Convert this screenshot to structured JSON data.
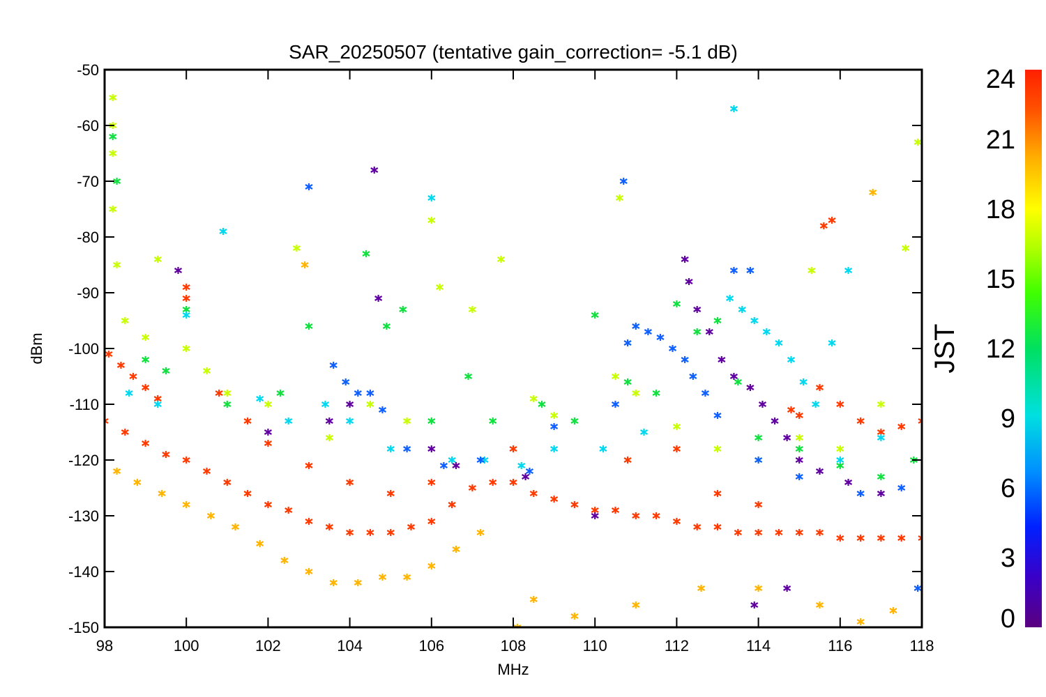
{
  "chart_data": {
    "type": "scatter",
    "title": "SAR_20250507 (tentative gain_correction= -5.1 dB)",
    "xlabel": "MHz",
    "ylabel": "dBm",
    "xlim": [
      98,
      118
    ],
    "ylim": [
      -150,
      -50
    ],
    "x_ticks": [
      "98",
      "100",
      "102",
      "104",
      "106",
      "108",
      "110",
      "112",
      "114",
      "116",
      "118"
    ],
    "y_ticks": [
      "-50",
      "-60",
      "-70",
      "-80",
      "-90",
      "-100",
      "-110",
      "-120",
      "-130",
      "-140",
      "-150"
    ],
    "grid": false,
    "colorbar": {
      "label": "JST",
      "range": [
        0,
        24
      ],
      "ticks": [
        "0",
        "3",
        "6",
        "9",
        "12",
        "15",
        "18",
        "21",
        "24"
      ],
      "colormap": "rainbow",
      "colors": [
        "#5a0080",
        "#3a00c8",
        "#0020ff",
        "#0090ff",
        "#00e0e0",
        "#00e060",
        "#40ff00",
        "#b0ff00",
        "#ffff00",
        "#ffb000",
        "#ff5000",
        "#ff2000"
      ]
    },
    "series": [
      {
        "jst": 22,
        "color": "#ff3a00",
        "points": [
          [
            98.0,
            -113
          ],
          [
            98.5,
            -115
          ],
          [
            99.0,
            -117
          ],
          [
            99.5,
            -119
          ],
          [
            100.0,
            -120
          ],
          [
            100.5,
            -122
          ],
          [
            101.0,
            -124
          ],
          [
            101.5,
            -126
          ],
          [
            102.0,
            -128
          ],
          [
            102.5,
            -129
          ],
          [
            103.0,
            -131
          ],
          [
            103.5,
            -132
          ],
          [
            104.0,
            -133
          ],
          [
            104.5,
            -133
          ],
          [
            105.0,
            -133
          ],
          [
            105.5,
            -132
          ],
          [
            106.0,
            -131
          ],
          [
            106.5,
            -128
          ],
          [
            107.0,
            -125
          ],
          [
            107.5,
            -124
          ],
          [
            108.0,
            -124
          ],
          [
            108.5,
            -126
          ],
          [
            109.0,
            -127
          ],
          [
            109.5,
            -128
          ],
          [
            110.0,
            -129
          ],
          [
            110.5,
            -129
          ],
          [
            111.0,
            -130
          ],
          [
            111.5,
            -130
          ],
          [
            112.0,
            -131
          ],
          [
            112.5,
            -132
          ],
          [
            113.0,
            -132
          ],
          [
            113.5,
            -133
          ],
          [
            114.0,
            -133
          ],
          [
            114.5,
            -133
          ],
          [
            115.0,
            -133
          ],
          [
            115.5,
            -133
          ],
          [
            116.0,
            -134
          ],
          [
            116.5,
            -134
          ],
          [
            117.0,
            -134
          ],
          [
            117.5,
            -134
          ],
          [
            118.0,
            -134
          ],
          [
            98.1,
            -101
          ],
          [
            98.4,
            -103
          ],
          [
            98.7,
            -105
          ],
          [
            99.0,
            -107
          ],
          [
            99.3,
            -109
          ],
          [
            100.0,
            -89
          ],
          [
            100.0,
            -91
          ],
          [
            100.8,
            -108
          ],
          [
            101.5,
            -113
          ],
          [
            102.0,
            -117
          ],
          [
            103.0,
            -121
          ],
          [
            104.0,
            -124
          ],
          [
            105.0,
            -126
          ],
          [
            106.0,
            -124
          ],
          [
            108.0,
            -118
          ],
          [
            110.8,
            -120
          ],
          [
            112.0,
            -118
          ],
          [
            113.0,
            -126
          ],
          [
            114.0,
            -128
          ],
          [
            114.8,
            -111
          ],
          [
            115.0,
            -112
          ],
          [
            115.5,
            -107
          ],
          [
            116.0,
            -110
          ],
          [
            116.5,
            -113
          ],
          [
            117.0,
            -115
          ],
          [
            117.5,
            -114
          ],
          [
            118.0,
            -113
          ],
          [
            115.8,
            -77
          ],
          [
            115.6,
            -78
          ]
        ]
      },
      {
        "jst": 20,
        "color": "#ffb400",
        "points": [
          [
            98.3,
            -122
          ],
          [
            98.8,
            -124
          ],
          [
            99.4,
            -126
          ],
          [
            100.0,
            -128
          ],
          [
            100.6,
            -130
          ],
          [
            101.2,
            -132
          ],
          [
            101.8,
            -135
          ],
          [
            102.4,
            -138
          ],
          [
            103.0,
            -140
          ],
          [
            103.6,
            -142
          ],
          [
            104.2,
            -142
          ],
          [
            104.8,
            -141
          ],
          [
            105.4,
            -141
          ],
          [
            106.0,
            -139
          ],
          [
            106.6,
            -136
          ],
          [
            107.2,
            -133
          ],
          [
            108.5,
            -145
          ],
          [
            109.5,
            -148
          ],
          [
            111.0,
            -146
          ],
          [
            112.6,
            -143
          ],
          [
            114.0,
            -143
          ],
          [
            115.5,
            -146
          ],
          [
            116.5,
            -149
          ],
          [
            117.3,
            -147
          ],
          [
            116.8,
            -72
          ],
          [
            102.9,
            -85
          ],
          [
            108.1,
            -150
          ]
        ]
      },
      {
        "jst": 18,
        "color": "#c8ff00",
        "points": [
          [
            98.2,
            -55
          ],
          [
            98.2,
            -60
          ],
          [
            98.2,
            -65
          ],
          [
            98.2,
            -75
          ],
          [
            98.3,
            -85
          ],
          [
            98.5,
            -95
          ],
          [
            99.0,
            -98
          ],
          [
            99.3,
            -84
          ],
          [
            100.0,
            -100
          ],
          [
            100.5,
            -104
          ],
          [
            101.0,
            -108
          ],
          [
            102.0,
            -110
          ],
          [
            102.7,
            -82
          ],
          [
            103.5,
            -116
          ],
          [
            104.5,
            -110
          ],
          [
            105.4,
            -113
          ],
          [
            106.0,
            -77
          ],
          [
            106.2,
            -89
          ],
          [
            107.0,
            -93
          ],
          [
            107.7,
            -84
          ],
          [
            108.5,
            -109
          ],
          [
            109.0,
            -112
          ],
          [
            110.5,
            -105
          ],
          [
            110.6,
            -73
          ],
          [
            111.0,
            -108
          ],
          [
            112.0,
            -114
          ],
          [
            113.0,
            -118
          ],
          [
            114.0,
            -120
          ],
          [
            115.0,
            -116
          ],
          [
            116.0,
            -118
          ],
          [
            117.0,
            -110
          ],
          [
            117.9,
            -63
          ],
          [
            117.6,
            -82
          ],
          [
            115.3,
            -86
          ]
        ]
      },
      {
        "jst": 14,
        "color": "#10e040",
        "points": [
          [
            98.2,
            -62
          ],
          [
            98.3,
            -70
          ],
          [
            99.0,
            -102
          ],
          [
            99.5,
            -104
          ],
          [
            100.0,
            -93
          ],
          [
            101.0,
            -110
          ],
          [
            102.3,
            -108
          ],
          [
            103.0,
            -96
          ],
          [
            104.4,
            -83
          ],
          [
            104.9,
            -96
          ],
          [
            105.3,
            -93
          ],
          [
            106.0,
            -113
          ],
          [
            106.9,
            -105
          ],
          [
            107.5,
            -113
          ],
          [
            108.7,
            -110
          ],
          [
            109.5,
            -113
          ],
          [
            110.0,
            -94
          ],
          [
            110.8,
            -106
          ],
          [
            111.5,
            -108
          ],
          [
            112.0,
            -92
          ],
          [
            112.5,
            -97
          ],
          [
            113.0,
            -95
          ],
          [
            113.5,
            -106
          ],
          [
            114.0,
            -116
          ],
          [
            115.0,
            -118
          ],
          [
            116.0,
            -121
          ],
          [
            117.0,
            -123
          ],
          [
            117.8,
            -120
          ]
        ]
      },
      {
        "jst": 10,
        "color": "#00d8f0",
        "points": [
          [
            98.6,
            -108
          ],
          [
            99.3,
            -110
          ],
          [
            100.0,
            -94
          ],
          [
            100.9,
            -79
          ],
          [
            101.8,
            -109
          ],
          [
            102.5,
            -113
          ],
          [
            103.4,
            -110
          ],
          [
            104.0,
            -113
          ],
          [
            105.0,
            -118
          ],
          [
            106.0,
            -73
          ],
          [
            106.5,
            -120
          ],
          [
            107.3,
            -120
          ],
          [
            108.2,
            -121
          ],
          [
            109.0,
            -118
          ],
          [
            110.2,
            -118
          ],
          [
            111.2,
            -115
          ],
          [
            113.3,
            -91
          ],
          [
            113.6,
            -93
          ],
          [
            113.9,
            -95
          ],
          [
            114.2,
            -97
          ],
          [
            114.5,
            -99
          ],
          [
            114.8,
            -102
          ],
          [
            115.1,
            -106
          ],
          [
            115.4,
            -110
          ],
          [
            115.8,
            -99
          ],
          [
            116.2,
            -86
          ],
          [
            113.4,
            -57
          ],
          [
            116.0,
            -120
          ],
          [
            117.0,
            -116
          ]
        ]
      },
      {
        "jst": 6,
        "color": "#1060ff",
        "points": [
          [
            103.0,
            -71
          ],
          [
            103.6,
            -103
          ],
          [
            103.9,
            -106
          ],
          [
            104.2,
            -108
          ],
          [
            104.5,
            -108
          ],
          [
            104.8,
            -111
          ],
          [
            105.4,
            -118
          ],
          [
            106.3,
            -121
          ],
          [
            107.2,
            -120
          ],
          [
            108.4,
            -122
          ],
          [
            109.0,
            -114
          ],
          [
            110.5,
            -110
          ],
          [
            110.7,
            -70
          ],
          [
            110.8,
            -99
          ],
          [
            111.0,
            -96
          ],
          [
            111.3,
            -97
          ],
          [
            111.6,
            -98
          ],
          [
            111.9,
            -100
          ],
          [
            112.2,
            -102
          ],
          [
            112.4,
            -105
          ],
          [
            112.7,
            -108
          ],
          [
            113.0,
            -112
          ],
          [
            113.4,
            -86
          ],
          [
            113.8,
            -86
          ],
          [
            114.0,
            -120
          ],
          [
            115.0,
            -123
          ],
          [
            116.5,
            -126
          ],
          [
            117.5,
            -125
          ],
          [
            117.9,
            -143
          ]
        ]
      },
      {
        "jst": 2,
        "color": "#6000a0",
        "points": [
          [
            99.8,
            -86
          ],
          [
            102.0,
            -115
          ],
          [
            103.5,
            -113
          ],
          [
            104.0,
            -110
          ],
          [
            104.6,
            -68
          ],
          [
            104.7,
            -91
          ],
          [
            106.0,
            -118
          ],
          [
            106.6,
            -121
          ],
          [
            108.3,
            -123
          ],
          [
            110.0,
            -130
          ],
          [
            112.2,
            -84
          ],
          [
            112.3,
            -88
          ],
          [
            112.5,
            -93
          ],
          [
            112.8,
            -97
          ],
          [
            113.1,
            -102
          ],
          [
            113.4,
            -105
          ],
          [
            113.8,
            -107
          ],
          [
            114.1,
            -110
          ],
          [
            114.4,
            -113
          ],
          [
            114.7,
            -116
          ],
          [
            115.0,
            -120
          ],
          [
            115.5,
            -122
          ],
          [
            116.2,
            -124
          ],
          [
            117.0,
            -126
          ],
          [
            113.9,
            -146
          ],
          [
            114.7,
            -143
          ]
        ]
      }
    ]
  }
}
